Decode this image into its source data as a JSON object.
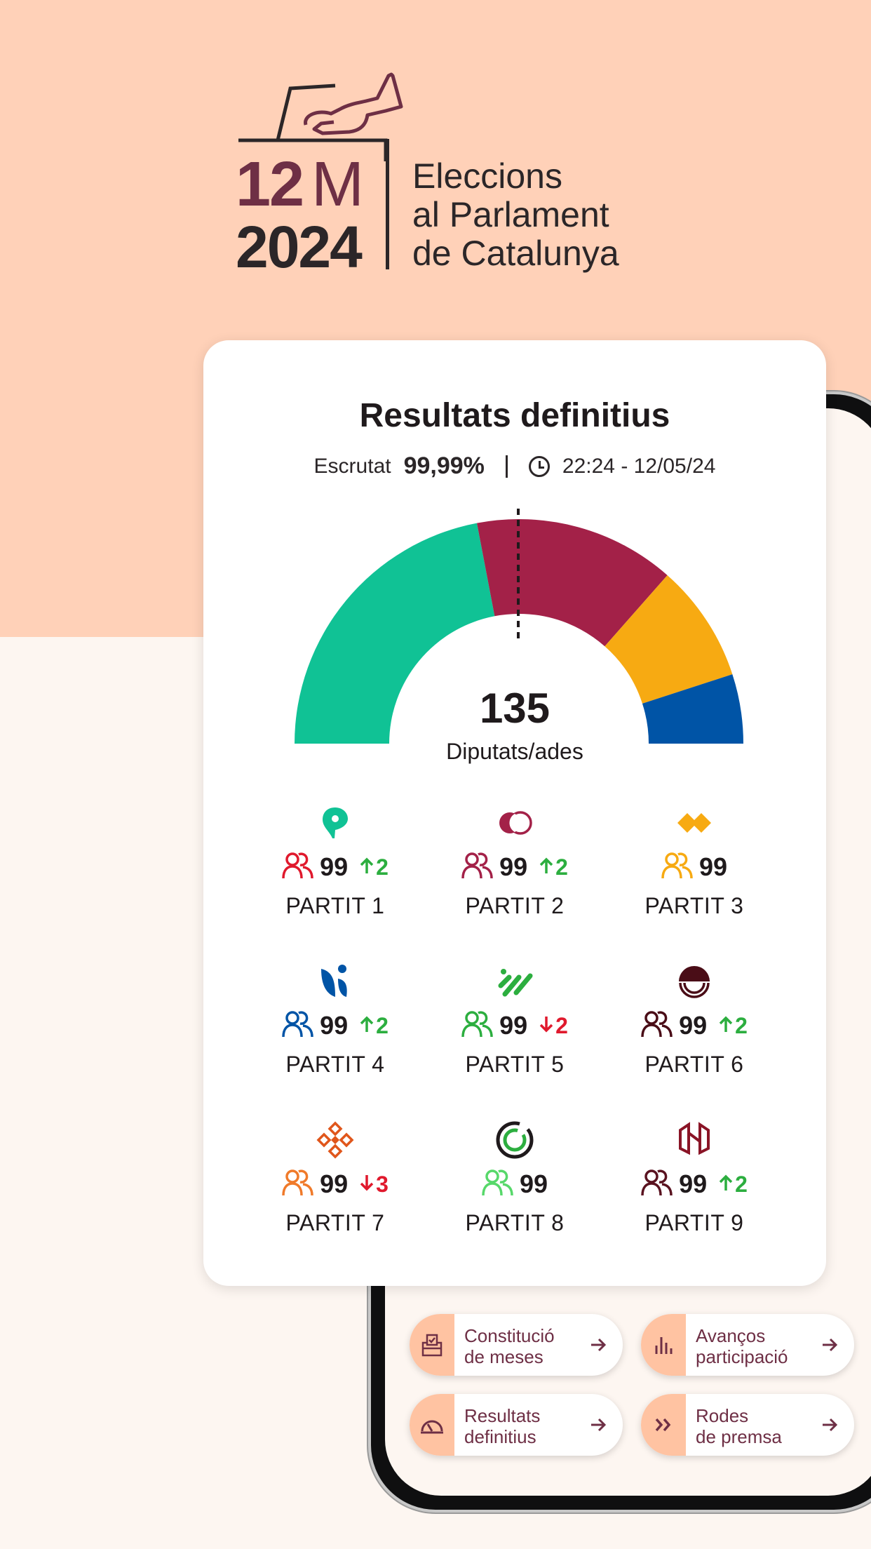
{
  "branding": {
    "date_day": "12",
    "date_month": "M",
    "year": "2024",
    "title_lines": [
      "Eleccions",
      "al Parlament",
      "de Catalunya"
    ]
  },
  "results": {
    "title": "Resultats definitius",
    "scrutiny_label": "Escrutat",
    "scrutiny_value": "99,99%",
    "timestamp": "22:24 - 12/05/24",
    "total_seats": "135",
    "total_seats_label": "Diputats/ades"
  },
  "chart_data": {
    "type": "pie",
    "subtype": "hemicycle",
    "total": 135,
    "majority_marker": true,
    "segments": [
      {
        "color": "#10c295",
        "fraction": 0.44
      },
      {
        "color": "#a32148",
        "fraction": 0.29
      },
      {
        "color": "#f7aa12",
        "fraction": 0.17
      },
      {
        "color": "#0054a6",
        "fraction": 0.1
      }
    ]
  },
  "parties": [
    {
      "name": "PARTIT 1",
      "seats": "99",
      "delta": "2",
      "direction": "up",
      "icon": "pin-icon",
      "color": "#10c295",
      "people_color": "#e0192d"
    },
    {
      "name": "PARTIT 2",
      "seats": "99",
      "delta": "2",
      "direction": "up",
      "icon": "circles-icon",
      "color": "#a32148",
      "people_color": "#a32148"
    },
    {
      "name": "PARTIT 3",
      "seats": "99",
      "delta": "",
      "direction": "none",
      "icon": "diamonds-icon",
      "color": "#f7aa12",
      "people_color": "#f7aa12"
    },
    {
      "name": "PARTIT 4",
      "seats": "99",
      "delta": "2",
      "direction": "up",
      "icon": "leaf-icon",
      "color": "#0054a6",
      "people_color": "#0054a6"
    },
    {
      "name": "PARTIT 5",
      "seats": "99",
      "delta": "2",
      "direction": "down",
      "icon": "slashes-icon",
      "color": "#2cae3f",
      "people_color": "#2cae3f"
    },
    {
      "name": "PARTIT 6",
      "seats": "99",
      "delta": "2",
      "direction": "up",
      "icon": "sun-icon",
      "color": "#4a0d17",
      "people_color": "#4a0d17"
    },
    {
      "name": "PARTIT 7",
      "seats": "99",
      "delta": "3",
      "direction": "down",
      "icon": "flower-icon",
      "color": "#e0561b",
      "people_color": "#f07a2a"
    },
    {
      "name": "PARTIT 8",
      "seats": "99",
      "delta": "",
      "direction": "none",
      "icon": "ring-icon",
      "color": "#1f1a1c",
      "people_color": "#57d86a"
    },
    {
      "name": "PARTIT 9",
      "seats": "99",
      "delta": "2",
      "direction": "up",
      "icon": "shield-icon",
      "color": "#8a1426",
      "people_color": "#5a1320"
    }
  ],
  "nav": [
    {
      "line1": "Constitució",
      "line2": "de meses",
      "icon": "ballot-box-icon"
    },
    {
      "line1": "Avanços",
      "line2": "participació",
      "icon": "bar-chart-icon"
    },
    {
      "line1": "Resultats",
      "line2": "definitius",
      "icon": "gauge-icon"
    },
    {
      "line1": "Rodes",
      "line2": "de premsa",
      "icon": "double-chevron-icon"
    }
  ]
}
